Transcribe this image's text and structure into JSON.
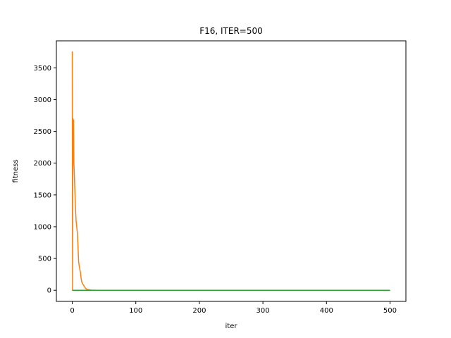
{
  "chart_data": {
    "type": "line",
    "title": "F16, ITER=500",
    "xlabel": "iter",
    "ylabel": "fitness",
    "xlim": [
      -25,
      525
    ],
    "ylim": [
      -175,
      3925
    ],
    "xticks": [
      0,
      100,
      200,
      300,
      400,
      500
    ],
    "yticks": [
      0,
      500,
      1000,
      1500,
      2000,
      2500,
      3000,
      3500
    ],
    "grid": false,
    "series": [
      {
        "color": "#1f77b4",
        "x": [
          0,
          500
        ],
        "y": [
          0,
          0
        ]
      },
      {
        "color": "#ff7f0e",
        "x": [
          0,
          0.5,
          1,
          1.5,
          2,
          2.5,
          3,
          4,
          5,
          6,
          7,
          8,
          9,
          10,
          11,
          12,
          13,
          14,
          15,
          17,
          19,
          21,
          23,
          26,
          30,
          35,
          40,
          500
        ],
        "y": [
          3760,
          0,
          2700,
          2500,
          2680,
          2000,
          1900,
          1600,
          1300,
          1100,
          1000,
          900,
          700,
          450,
          380,
          320,
          280,
          180,
          130,
          90,
          60,
          30,
          15,
          8,
          3,
          1,
          0,
          0
        ]
      },
      {
        "color": "#2ca02c",
        "x": [
          0,
          500
        ],
        "y": [
          0,
          0
        ]
      }
    ]
  }
}
